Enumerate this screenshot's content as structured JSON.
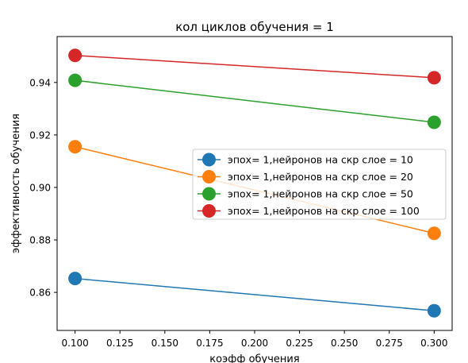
{
  "chart_data": {
    "type": "line",
    "title": "кол циклов обучения = 1",
    "xlabel": "коэфф обучения",
    "ylabel": "эффективность обучения",
    "xlim": [
      0.09,
      0.31
    ],
    "ylim": [
      0.8455,
      0.9575
    ],
    "x_ticks": [
      "0.100",
      "0.125",
      "0.150",
      "0.175",
      "0.200",
      "0.225",
      "0.250",
      "0.275",
      "0.300"
    ],
    "y_ticks": [
      "0.86",
      "0.88",
      "0.90",
      "0.92",
      "0.94"
    ],
    "grid": false,
    "legend_position": "center-right",
    "series": [
      {
        "name": "эпох= 1,нейронов на скр слое = 10",
        "color": "#1f77b4",
        "x": [
          0.1,
          0.3
        ],
        "y": [
          0.8653,
          0.853
        ]
      },
      {
        "name": "эпох= 1,нейронов на скр слое = 20",
        "color": "#ff7f0e",
        "x": [
          0.1,
          0.3
        ],
        "y": [
          0.9155,
          0.8825
        ]
      },
      {
        "name": "эпох= 1,нейронов на скр слое = 50",
        "color": "#2ca02c",
        "x": [
          0.1,
          0.3
        ],
        "y": [
          0.9408,
          0.9248
        ]
      },
      {
        "name": "эпох= 1,нейронов на скр слое = 100",
        "color": "#d62728",
        "x": [
          0.1,
          0.3
        ],
        "y": [
          0.9503,
          0.9418
        ]
      }
    ]
  }
}
